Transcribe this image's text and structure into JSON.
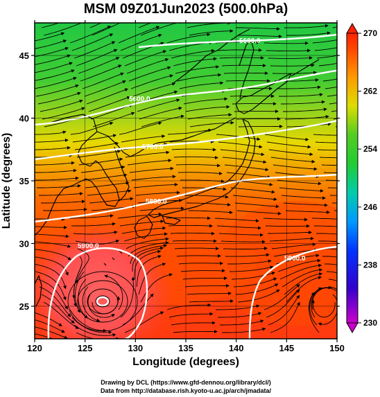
{
  "title": "MSM 09Z01Jun2023 (500.0hPa)",
  "xaxis": {
    "label": "Longitude (degrees)",
    "ticks": [
      120,
      125,
      130,
      135,
      140,
      145,
      150
    ],
    "range": [
      120,
      150
    ]
  },
  "yaxis": {
    "label": "Latitude  (degrees)",
    "ticks": [
      25,
      30,
      35,
      40,
      45
    ],
    "range": [
      22.4,
      47.6
    ]
  },
  "colorbar": {
    "ticks": [
      230,
      238,
      246,
      254,
      262,
      270
    ],
    "range": [
      230,
      270
    ]
  },
  "contours": [
    {
      "level": "5600.0",
      "label": "5600.0"
    },
    {
      "level": "5700.0",
      "label": "5700.0"
    },
    {
      "level": "5800.0",
      "label": "5800.0"
    },
    {
      "level": "5900.0",
      "label": "5900.0"
    }
  ],
  "credits": {
    "line1": "Drawing by DCL (https://www.gfd-dennou.org/library/dcl/)",
    "line2": "Data from http://database.rish.kyoto-u.ac.jp/arch/jmadata/"
  },
  "colors": {
    "green": "#33cc33",
    "yellow": "#e6e600",
    "orange": "#ff8000",
    "red": "#ff3300",
    "land": "#000000",
    "contour": "#ffffff"
  },
  "map_features": [
    "streamlines",
    "temperature-shading",
    "geopotential-contours",
    "coastlines",
    "typhoon-vortex"
  ]
}
